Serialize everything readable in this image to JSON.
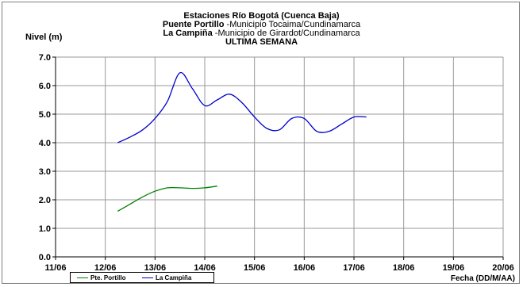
{
  "chart_data": {
    "type": "line",
    "title_line1": "Estaciones Río Bogotá (Cuenca Baja)",
    "title_line2_bold": "Puente Portillo",
    "title_line2_rest": " -Municipio Tocaima/Cundinamarca",
    "title_line3_bold": "La Campiña",
    "title_line3_rest": " -Municipio de Girardot/Cundinamarca",
    "title_line4": "ULTIMA SEMANA",
    "ylabel": "Nivel (m)",
    "xlabel": "Fecha (DD/M/AA)",
    "x_ticks": [
      "11/06",
      "12/06",
      "13/06",
      "14/06",
      "15/06",
      "16/06",
      "17/06",
      "18/06",
      "19/06",
      "20/06"
    ],
    "y_ticks": [
      "0.0",
      "1.0",
      "2.0",
      "3.0",
      "4.0",
      "5.0",
      "6.0",
      "7.0"
    ],
    "xlim": [
      0,
      9
    ],
    "ylim": [
      0,
      7
    ],
    "grid": true,
    "legend_position": "bottom-left",
    "series": [
      {
        "name": "Pte. Portillo",
        "color": "#008000",
        "x": [
          1.25,
          1.5,
          1.75,
          2.0,
          2.25,
          2.5,
          2.75,
          3.0,
          3.25
        ],
        "y": [
          1.6,
          1.85,
          2.1,
          2.3,
          2.42,
          2.42,
          2.4,
          2.42,
          2.48
        ]
      },
      {
        "name": "La Campiña",
        "color": "#0000cc",
        "x": [
          1.25,
          1.5,
          1.75,
          2.0,
          2.25,
          2.5,
          2.75,
          3.0,
          3.25,
          3.5,
          3.75,
          4.0,
          4.25,
          4.5,
          4.75,
          5.0,
          5.25,
          5.5,
          5.75,
          6.0,
          6.25
        ],
        "y": [
          4.0,
          4.2,
          4.45,
          4.85,
          5.45,
          6.45,
          5.9,
          5.3,
          5.5,
          5.7,
          5.4,
          4.9,
          4.5,
          4.45,
          4.85,
          4.85,
          4.4,
          4.4,
          4.65,
          4.9,
          4.9
        ]
      }
    ]
  }
}
